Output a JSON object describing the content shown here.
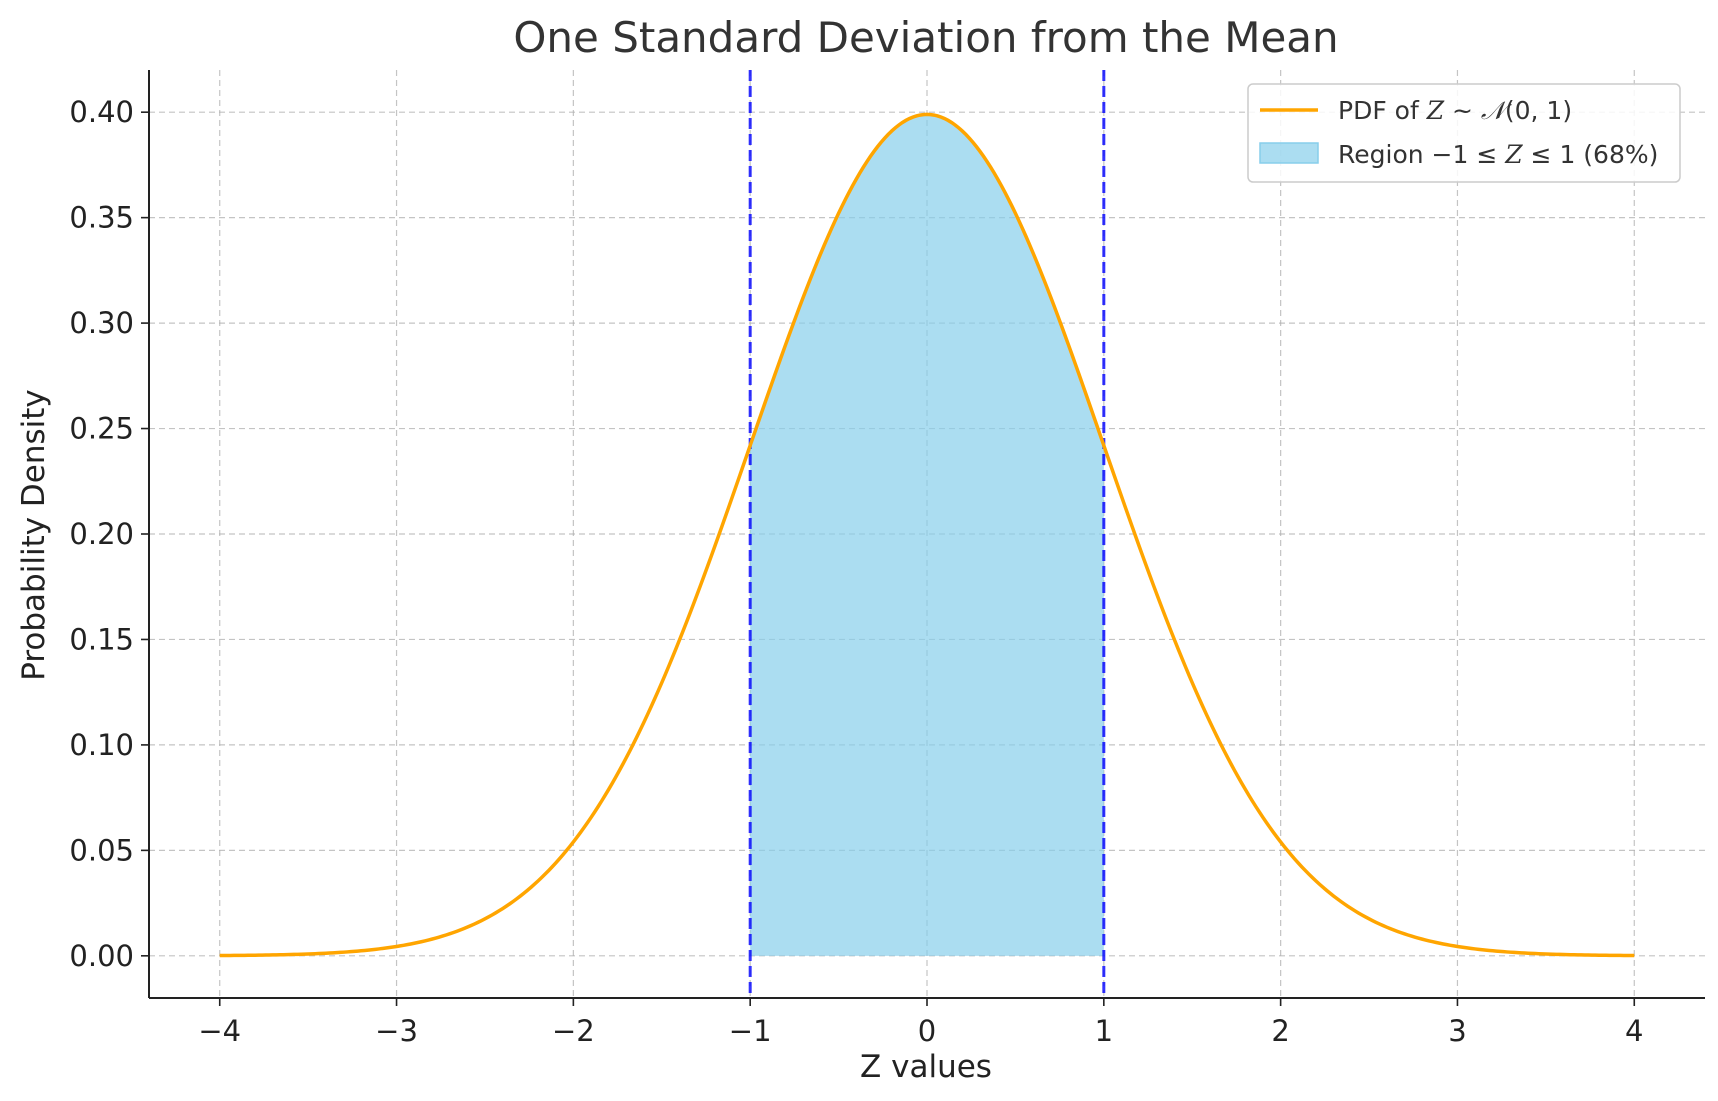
{
  "chart_data": {
    "type": "line",
    "title": "One Standard Deviation from the Mean",
    "xlabel": "Z values",
    "ylabel": "Probability Density",
    "xlim": [
      -4.4,
      4.4
    ],
    "ylim": [
      -0.02,
      0.42
    ],
    "xticks": [
      -4,
      -3,
      -2,
      -1,
      0,
      1,
      2,
      3,
      4
    ],
    "xtick_labels": [
      "−4",
      "−3",
      "−2",
      "−1",
      "0",
      "1",
      "2",
      "3",
      "4"
    ],
    "yticks": [
      0.0,
      0.05,
      0.1,
      0.15,
      0.2,
      0.25,
      0.3,
      0.35,
      0.4
    ],
    "ytick_labels": [
      "0.00",
      "0.05",
      "0.10",
      "0.15",
      "0.20",
      "0.25",
      "0.30",
      "0.35",
      "0.40"
    ],
    "grid": true,
    "legend_position": "top-right",
    "series": [
      {
        "name": "PDF of Z ~ 𝒩(0, 1)",
        "kind": "line",
        "color": "#FFA500",
        "x": [
          -4.0,
          -3.5,
          -3.0,
          -2.5,
          -2.0,
          -1.5,
          -1.0,
          -0.5,
          0.0,
          0.5,
          1.0,
          1.5,
          2.0,
          2.5,
          3.0,
          3.5,
          4.0
        ],
        "y": [
          0.0001,
          0.0009,
          0.0044,
          0.0175,
          0.054,
          0.1295,
          0.242,
          0.3521,
          0.3989,
          0.3521,
          0.242,
          0.1295,
          0.054,
          0.0175,
          0.0044,
          0.0009,
          0.0001
        ]
      },
      {
        "name": "Region −1 ≤ Z ≤ 1 (68%)",
        "kind": "area",
        "color": "#87CEEB",
        "x_range": [
          -1,
          1
        ]
      }
    ],
    "vertical_lines": [
      {
        "x": -1,
        "color": "#0000FF",
        "style": "dashed"
      },
      {
        "x": 1,
        "color": "#0000FF",
        "style": "dashed"
      }
    ],
    "legend": {
      "line_label": {
        "pre": "PDF of ",
        "var": "Z",
        "mid": " ~ ",
        "dist": "𝒩",
        "args": "(0, 1)"
      },
      "area_label": {
        "pre": "Region −1 ≤ ",
        "var": "Z",
        "post": " ≤ 1 (68%)"
      }
    }
  }
}
